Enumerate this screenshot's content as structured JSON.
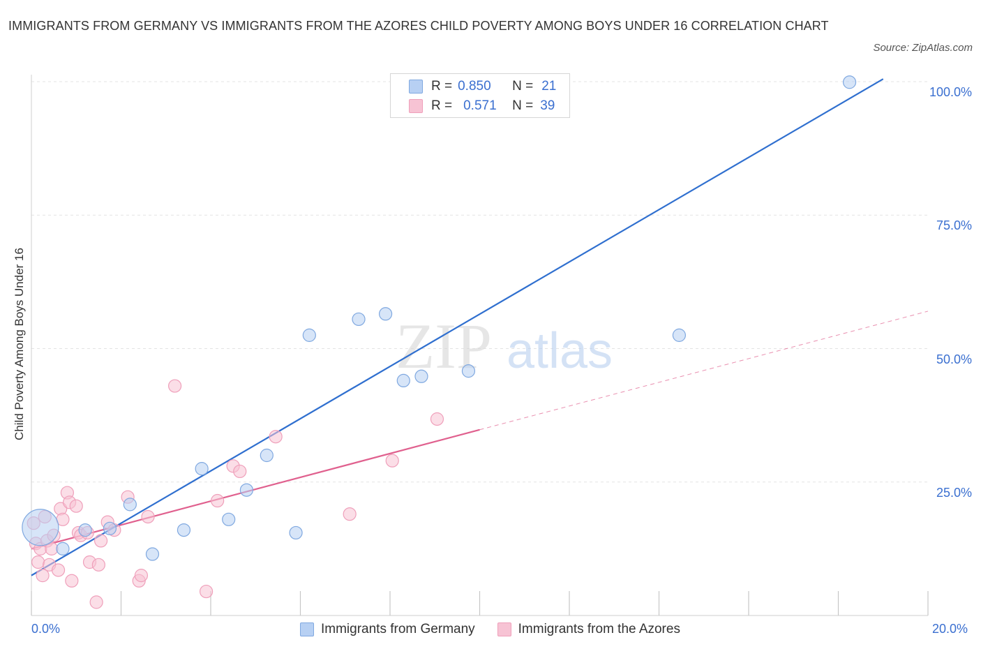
{
  "title": "IMMIGRANTS FROM GERMANY VS IMMIGRANTS FROM THE AZORES CHILD POVERTY AMONG BOYS UNDER 16 CORRELATION CHART",
  "source": "Source: ZipAtlas.com",
  "watermark": {
    "zip": "ZIP",
    "atlas": "atlas"
  },
  "legend": {
    "rows": [
      {
        "r_label": "R =",
        "r_value": "0.850",
        "n_label": "N =",
        "n_value": "21"
      },
      {
        "r_label": "R =",
        "r_value": "0.571",
        "n_label": "N =",
        "n_value": "39"
      }
    ]
  },
  "bottom_legend": {
    "germany": "Immigrants from Germany",
    "azores": "Immigrants from the Azores"
  },
  "colors": {
    "germany_fill": "#b7d0f3",
    "germany_stroke": "#7fa8e0",
    "germany_line": "#2f6fcf",
    "azores_fill": "#f7c3d4",
    "azores_stroke": "#ef9fba",
    "azores_line": "#e0608e",
    "tick_text": "#3a6fd0",
    "grid": "#e3e3e3"
  },
  "chart_data": {
    "type": "scatter",
    "title": "IMMIGRANTS FROM GERMANY VS IMMIGRANTS FROM THE AZORES CHILD POVERTY AMONG BOYS UNDER 16 CORRELATION CHART",
    "xlabel": "",
    "ylabel": "Child Poverty Among Boys Under 16",
    "xlim": [
      0,
      20
    ],
    "ylim": [
      0,
      100
    ],
    "x_tick_labels": [
      "0.0%",
      "20.0%"
    ],
    "y_ticks": [
      {
        "value": 25,
        "label": "25.0%"
      },
      {
        "value": 50,
        "label": "50.0%"
      },
      {
        "value": 75,
        "label": "75.0%"
      },
      {
        "value": 100,
        "label": "100.0%"
      }
    ],
    "grid": true,
    "legend_position": "top-center",
    "series": [
      {
        "name": "Immigrants from Germany",
        "points": [
          [
            0.2,
            16.5
          ],
          [
            0.7,
            12.5
          ],
          [
            1.2,
            16.0
          ],
          [
            1.75,
            16.3
          ],
          [
            2.2,
            20.8
          ],
          [
            2.7,
            11.5
          ],
          [
            3.4,
            16.0
          ],
          [
            3.8,
            27.5
          ],
          [
            4.4,
            18.0
          ],
          [
            4.8,
            23.5
          ],
          [
            5.25,
            30.0
          ],
          [
            5.9,
            15.5
          ],
          [
            6.2,
            52.5
          ],
          [
            7.3,
            55.5
          ],
          [
            7.9,
            56.5
          ],
          [
            8.3,
            44.0
          ],
          [
            8.7,
            44.8
          ],
          [
            9.75,
            45.8
          ],
          [
            10.45,
            99.8
          ],
          [
            14.45,
            52.5
          ],
          [
            18.25,
            99.9
          ]
        ],
        "sizes": [
          26,
          9,
          9,
          9,
          9,
          9,
          9,
          9,
          9,
          9,
          9,
          9,
          9,
          9,
          9,
          9,
          9,
          9,
          9,
          9,
          9
        ],
        "trend": {
          "x": [
            0,
            19.0
          ],
          "y": [
            7.5,
            100.5
          ],
          "dashed_to": null
        }
      },
      {
        "name": "Immigrants from the Azores",
        "points": [
          [
            0.05,
            17.3
          ],
          [
            0.1,
            13.5
          ],
          [
            0.15,
            10.0
          ],
          [
            0.2,
            12.5
          ],
          [
            0.25,
            7.5
          ],
          [
            0.3,
            18.5
          ],
          [
            0.35,
            14.0
          ],
          [
            0.4,
            9.5
          ],
          [
            0.45,
            12.5
          ],
          [
            0.5,
            15.0
          ],
          [
            0.6,
            8.5
          ],
          [
            0.65,
            20.0
          ],
          [
            0.7,
            18.0
          ],
          [
            0.8,
            23.0
          ],
          [
            0.85,
            21.2
          ],
          [
            0.9,
            6.5
          ],
          [
            1.0,
            20.5
          ],
          [
            1.05,
            15.5
          ],
          [
            1.1,
            15.0
          ],
          [
            1.25,
            15.5
          ],
          [
            1.3,
            10.0
          ],
          [
            1.45,
            2.5
          ],
          [
            1.5,
            9.5
          ],
          [
            1.55,
            14.0
          ],
          [
            1.7,
            17.5
          ],
          [
            1.85,
            16.0
          ],
          [
            2.15,
            22.2
          ],
          [
            2.4,
            6.5
          ],
          [
            2.45,
            7.5
          ],
          [
            2.6,
            18.5
          ],
          [
            3.2,
            43.0
          ],
          [
            3.9,
            4.5
          ],
          [
            4.15,
            21.5
          ],
          [
            4.5,
            28.0
          ],
          [
            4.65,
            27.0
          ],
          [
            5.45,
            33.5
          ],
          [
            7.1,
            19.0
          ],
          [
            8.05,
            29.0
          ],
          [
            9.05,
            36.8
          ]
        ],
        "trend": {
          "x": [
            0,
            10.0
          ],
          "y": [
            12.5,
            34.8
          ],
          "dashed_to": [
            20.0,
            57.0
          ]
        }
      }
    ]
  }
}
